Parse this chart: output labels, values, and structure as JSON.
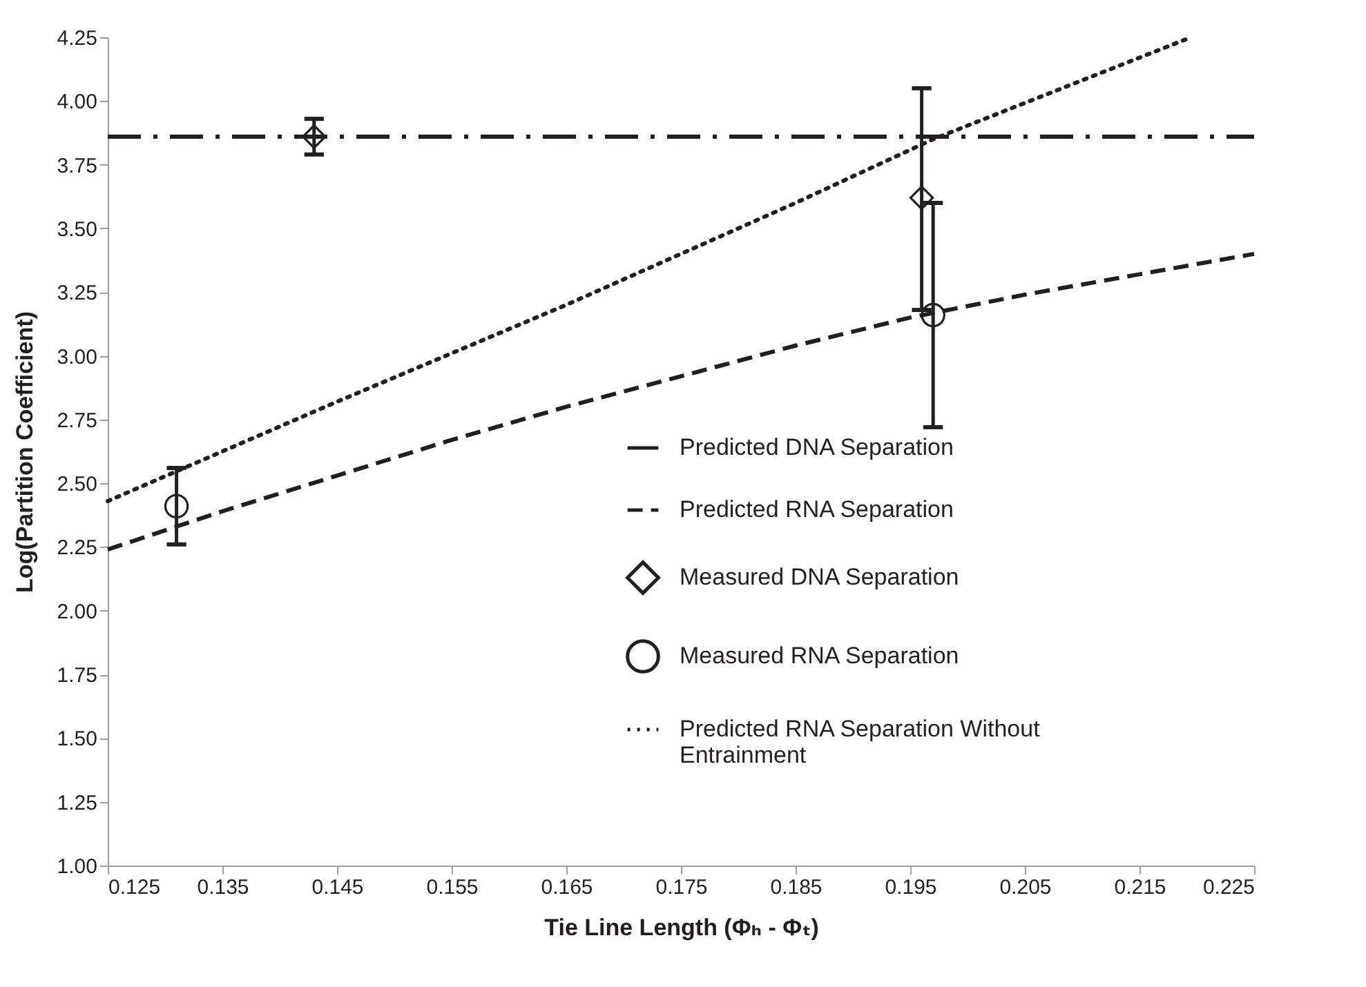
{
  "chart_data": {
    "type": "line",
    "xlabel": "Tie Line Length (Φₕ - Φₜ)",
    "ylabel": "Log(Partition Coefficient)",
    "xlim": [
      0.125,
      0.225
    ],
    "xticks": [
      0.125,
      0.135,
      0.145,
      0.155,
      0.165,
      0.175,
      0.185,
      0.195,
      0.205,
      0.215,
      0.225
    ],
    "ylim": [
      1,
      4.25
    ],
    "yticks": [
      {
        "value": 1,
        "label": "1.00"
      },
      1.25,
      {
        "value": 1.5,
        "label": "1.50"
      },
      1.75,
      {
        "value": 2,
        "label": "2.00"
      },
      2.25,
      {
        "value": 2.5,
        "label": "2.50"
      },
      2.75,
      {
        "value": 3,
        "label": "3.00"
      },
      3.25,
      {
        "value": 3.5,
        "label": "3.50"
      },
      3.75,
      {
        "value": 4,
        "label": "4.00"
      },
      4.25
    ],
    "grid": false,
    "legend": "right",
    "series": [
      {
        "name": "Predicted DNA Separation",
        "color": "#231f20",
        "line_style": "dashdot",
        "marker": "none",
        "x": [
          0.125,
          0.225
        ],
        "values": [
          3.86,
          3.86
        ]
      },
      {
        "name": "Predicted RNA Separation",
        "color": "#231f20",
        "line_style": "dashed",
        "marker": "none",
        "x": [
          0.125,
          0.135,
          0.145,
          0.155,
          0.165,
          0.175,
          0.185,
          0.195,
          0.205,
          0.215,
          0.225
        ],
        "values": [
          2.24,
          2.39,
          2.53,
          2.67,
          2.8,
          2.92,
          3.04,
          3.15,
          3.24,
          3.32,
          3.4
        ]
      },
      {
        "name": "Measured DNA Separation",
        "type": "scatter",
        "color": "#231f20",
        "marker": "diamond",
        "x": [
          0.143,
          0.196
        ],
        "values": [
          3.86,
          3.62
        ],
        "errors": [
          [
            3.79,
            3.93
          ],
          [
            3.18,
            4.05
          ]
        ]
      },
      {
        "name": "Measured RNA Separation",
        "type": "scatter",
        "color": "#231f20",
        "marker": "circle",
        "x": [
          0.131,
          0.197
        ],
        "values": [
          2.41,
          3.16
        ],
        "errors": [
          [
            2.26,
            2.56
          ],
          [
            2.72,
            3.6
          ]
        ]
      },
      {
        "name": "Predicted RNA Separation Without Entrainment",
        "color": "#231f20",
        "line_style": "dotted",
        "marker": "none",
        "x": [
          0.125,
          0.145,
          0.165,
          0.185,
          0.197,
          0.2195
        ],
        "values": [
          2.43,
          2.82,
          3.2,
          3.6,
          3.85,
          4.25
        ]
      }
    ]
  }
}
